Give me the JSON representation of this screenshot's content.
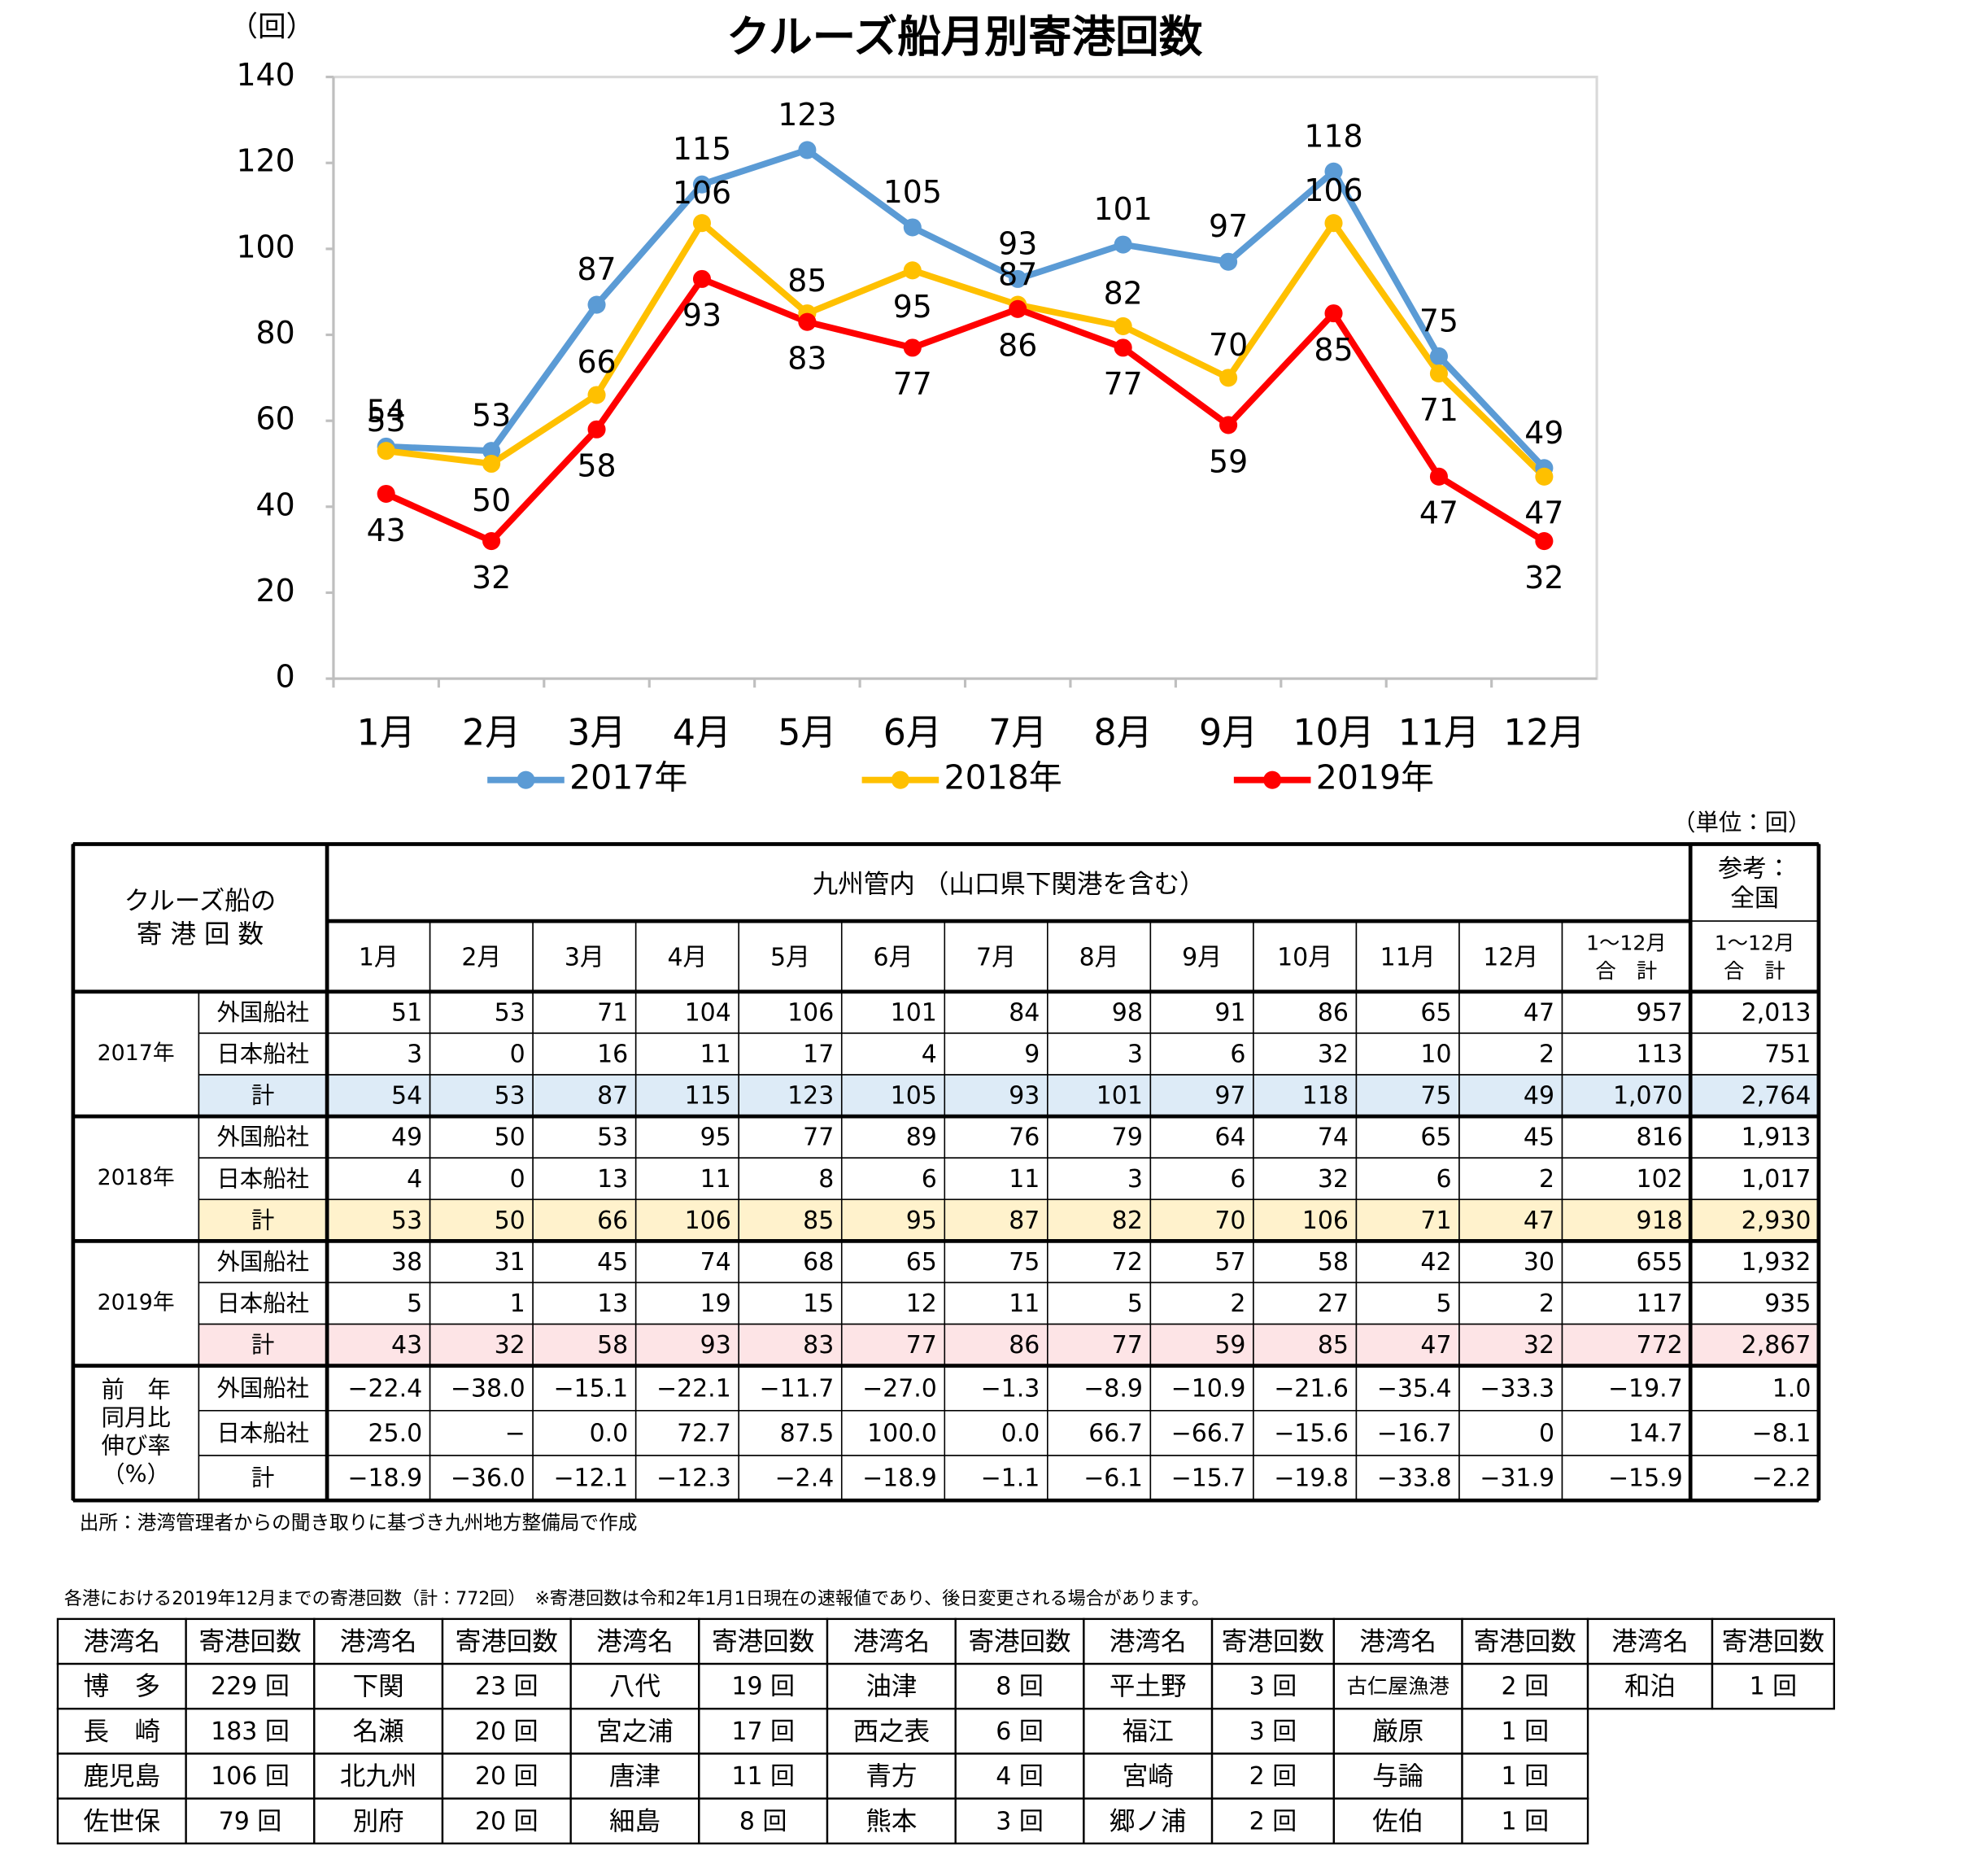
{
  "chart_data": {
    "type": "line",
    "title": "クルーズ船月別寄港回数",
    "y_unit": "（回）",
    "categories": [
      "1月",
      "2月",
      "3月",
      "4月",
      "5月",
      "6月",
      "7月",
      "8月",
      "9月",
      "10月",
      "11月",
      "12月"
    ],
    "series": [
      {
        "name": "2017年",
        "color": "#5b9bd5",
        "values": [
          54,
          53,
          87,
          115,
          123,
          105,
          93,
          101,
          97,
          118,
          75,
          49
        ]
      },
      {
        "name": "2018年",
        "color": "#ffc000",
        "values": [
          53,
          50,
          66,
          106,
          85,
          95,
          87,
          82,
          70,
          106,
          71,
          47
        ]
      },
      {
        "name": "2019年",
        "color": "#ff0000",
        "values": [
          43,
          32,
          58,
          93,
          83,
          77,
          86,
          77,
          59,
          85,
          47,
          32
        ]
      }
    ],
    "ylim": [
      0,
      140
    ],
    "yticks": [
      0,
      20,
      40,
      60,
      80,
      100,
      120,
      140
    ],
    "grid": false
  },
  "table": {
    "unit": "（単位：回）",
    "corner": [
      "クルーズ船の",
      "寄 港 回 数"
    ],
    "region": "九州管内 （山口県下関港を含む）",
    "national": [
      "参考：",
      "全国"
    ],
    "total_header": [
      "1～12月",
      "合　計"
    ],
    "groups": [
      {
        "label": [
          "2017年"
        ],
        "rows": [
          {
            "name": "外国船社",
            "cells": [
              "51",
              "53",
              "71",
              "104",
              "106",
              "101",
              "84",
              "98",
              "91",
              "86",
              "65",
              "47",
              "957",
              "2,013"
            ]
          },
          {
            "name": "日本船社",
            "cells": [
              "3",
              "0",
              "16",
              "11",
              "17",
              "4",
              "9",
              "3",
              "6",
              "32",
              "10",
              "2",
              "113",
              "751"
            ]
          },
          {
            "name": "計",
            "cells": [
              "54",
              "53",
              "87",
              "115",
              "123",
              "105",
              "93",
              "101",
              "97",
              "118",
              "75",
              "49",
              "1,070",
              "2,764"
            ]
          }
        ]
      },
      {
        "label": [
          "2018年"
        ],
        "rows": [
          {
            "name": "外国船社",
            "cells": [
              "49",
              "50",
              "53",
              "95",
              "77",
              "89",
              "76",
              "79",
              "64",
              "74",
              "65",
              "45",
              "816",
              "1,913"
            ]
          },
          {
            "name": "日本船社",
            "cells": [
              "4",
              "0",
              "13",
              "11",
              "8",
              "6",
              "11",
              "3",
              "6",
              "32",
              "6",
              "2",
              "102",
              "1,017"
            ]
          },
          {
            "name": "計",
            "cells": [
              "53",
              "50",
              "66",
              "106",
              "85",
              "95",
              "87",
              "82",
              "70",
              "106",
              "71",
              "47",
              "918",
              "2,930"
            ]
          }
        ]
      },
      {
        "label": [
          "2019年"
        ],
        "rows": [
          {
            "name": "外国船社",
            "cells": [
              "38",
              "31",
              "45",
              "74",
              "68",
              "65",
              "75",
              "72",
              "57",
              "58",
              "42",
              "30",
              "655",
              "1,932"
            ]
          },
          {
            "name": "日本船社",
            "cells": [
              "5",
              "1",
              "13",
              "19",
              "15",
              "12",
              "11",
              "5",
              "2",
              "27",
              "5",
              "2",
              "117",
              "935"
            ]
          },
          {
            "name": "計",
            "cells": [
              "43",
              "32",
              "58",
              "93",
              "83",
              "77",
              "86",
              "77",
              "59",
              "85",
              "47",
              "32",
              "772",
              "2,867"
            ]
          }
        ]
      },
      {
        "label": [
          "前　年",
          "同月比",
          "伸び率",
          "（%）"
        ],
        "rows": [
          {
            "name": "外国船社",
            "cells": [
              "−22.4",
              "−38.0",
              "−15.1",
              "−22.1",
              "−11.7",
              "−27.0",
              "−1.3",
              "−8.9",
              "−10.9",
              "−21.6",
              "−35.4",
              "−33.3",
              "−19.7",
              "1.0"
            ]
          },
          {
            "name": "日本船社",
            "cells": [
              "25.0",
              "−",
              "0.0",
              "72.7",
              "87.5",
              "100.0",
              "0.0",
              "66.7",
              "−66.7",
              "−15.6",
              "−16.7",
              "0",
              "14.7",
              "−8.1"
            ]
          },
          {
            "name": "計",
            "cells": [
              "−18.9",
              "−36.0",
              "−12.1",
              "−12.3",
              "−2.4",
              "−18.9",
              "−1.1",
              "−6.1",
              "−15.7",
              "−19.8",
              "−33.8",
              "−31.9",
              "−15.9",
              "−2.2"
            ]
          }
        ]
      }
    ],
    "source": "出所：港湾管理者からの聞き取りに基づき九州地方整備局で作成"
  },
  "port_table": {
    "caption": "各港における2019年12月までの寄港回数（計：772回）　※寄港回数は令和2年1月1日現在の速報値であり、後日変更される場合があります。",
    "header": {
      "name": "港湾名",
      "count": "寄港回数"
    },
    "columns": [
      [
        [
          "博　多",
          "229 回"
        ],
        [
          "長　崎",
          "183 回"
        ],
        [
          "鹿児島",
          "106 回"
        ],
        [
          "佐世保",
          "79 回"
        ]
      ],
      [
        [
          "下関",
          "23 回"
        ],
        [
          "名瀬",
          "20 回"
        ],
        [
          "北九州",
          "20 回"
        ],
        [
          "別府",
          "20 回"
        ]
      ],
      [
        [
          "八代",
          "19 回"
        ],
        [
          "宮之浦",
          "17 回"
        ],
        [
          "唐津",
          "11 回"
        ],
        [
          "細島",
          "8 回"
        ]
      ],
      [
        [
          "油津",
          "8 回"
        ],
        [
          "西之表",
          "6 回"
        ],
        [
          "青方",
          "4 回"
        ],
        [
          "熊本",
          "3 回"
        ]
      ],
      [
        [
          "平土野",
          "3 回"
        ],
        [
          "福江",
          "3 回"
        ],
        [
          "宮崎",
          "2 回"
        ],
        [
          "郷ノ浦",
          "2 回"
        ]
      ],
      [
        [
          "古仁屋漁港",
          "2 回"
        ],
        [
          "厳原",
          "1 回"
        ],
        [
          "与論",
          "1 回"
        ],
        [
          "佐伯",
          "1 回"
        ]
      ],
      [
        [
          "和泊",
          "1 回"
        ]
      ]
    ]
  }
}
